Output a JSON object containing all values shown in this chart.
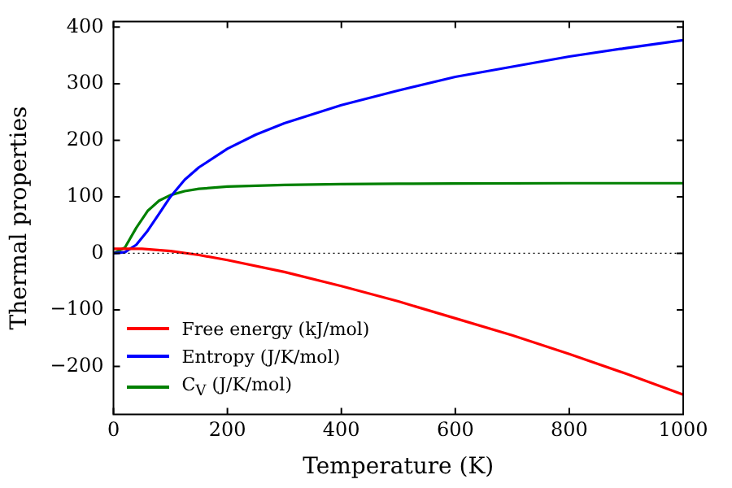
{
  "chart_data": {
    "type": "line",
    "xlabel": "Temperature (K)",
    "ylabel": "Thermal properties",
    "xlim": [
      0,
      1000
    ],
    "xticks": [
      0,
      200,
      400,
      600,
      800,
      1000
    ],
    "ylim": [
      -285,
      410
    ],
    "yticks": [
      -200,
      -100,
      0,
      100,
      200,
      300,
      400
    ],
    "grid": false,
    "legend": "bottom left",
    "marker": "none",
    "line_style": "solid",
    "ref_lines": [
      {
        "axis": "y",
        "value": 0,
        "color": "#000000",
        "line_style": "dotted"
      }
    ],
    "series": [
      {
        "name": "Free energy (kJ/mol)",
        "color": "#ff0000",
        "x": [
          0,
          50,
          100,
          150,
          200,
          300,
          400,
          500,
          600,
          700,
          800,
          900,
          1000
        ],
        "values": [
          8,
          8,
          4,
          -3,
          -12,
          -33,
          -58,
          -85,
          -115,
          -145,
          -178,
          -213,
          -250
        ]
      },
      {
        "name": "Entropy (J/K/mol)",
        "color": "#0000ff",
        "x": [
          0,
          20,
          40,
          60,
          80,
          100,
          125,
          150,
          200,
          250,
          300,
          400,
          500,
          600,
          700,
          800,
          900,
          1000
        ],
        "values": [
          0,
          2,
          15,
          40,
          70,
          100,
          130,
          152,
          185,
          210,
          230,
          262,
          288,
          312,
          330,
          348,
          363,
          377
        ]
      },
      {
        "name": "C$_{V}$ (J/K/mol)",
        "color": "#008000",
        "x": [
          0,
          20,
          40,
          60,
          80,
          100,
          125,
          150,
          200,
          300,
          400,
          500,
          600,
          800,
          1000
        ],
        "values": [
          0,
          10,
          45,
          75,
          93,
          103,
          110,
          114,
          118,
          121,
          122.5,
          123,
          123.5,
          124,
          124
        ]
      }
    ]
  }
}
